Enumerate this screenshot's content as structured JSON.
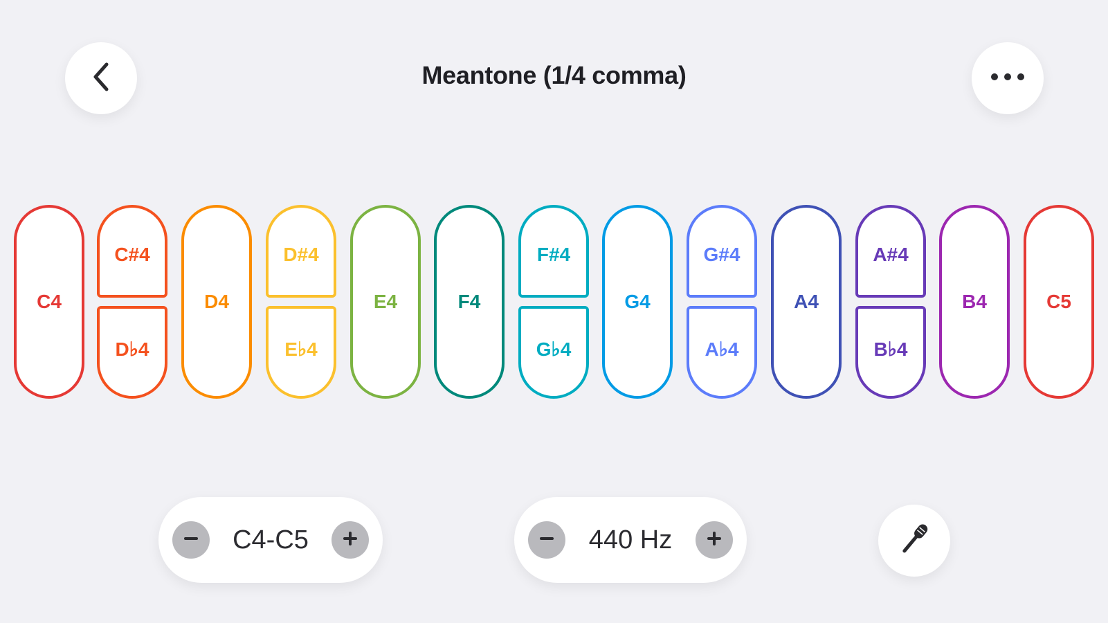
{
  "header": {
    "title": "Meantone (1/4 comma)",
    "back_icon": "chevron-left-icon",
    "more_icon": "ellipsis-icon"
  },
  "keys": [
    {
      "label": "C4",
      "color": "#e53935"
    },
    {
      "upper": "C#4",
      "lower": "D♭4",
      "color": "#f4511e"
    },
    {
      "label": "D4",
      "color": "#fb8c00"
    },
    {
      "upper": "D#4",
      "lower": "E♭4",
      "color": "#fbc02d"
    },
    {
      "label": "E4",
      "color": "#7cb342"
    },
    {
      "label": "F4",
      "color": "#00897b"
    },
    {
      "upper": "F#4",
      "lower": "G♭4",
      "color": "#00acc1"
    },
    {
      "label": "G4",
      "color": "#039be5"
    },
    {
      "upper": "G#4",
      "lower": "A♭4",
      "color": "#5c7cfa"
    },
    {
      "label": "A4",
      "color": "#3f51b5"
    },
    {
      "upper": "A#4",
      "lower": "B♭4",
      "color": "#673ab7"
    },
    {
      "label": "B4",
      "color": "#9c27b0"
    },
    {
      "label": "C5",
      "color": "#e53935"
    }
  ],
  "range": {
    "value": "C4-C5",
    "decrement_icon": "minus-icon",
    "increment_icon": "plus-icon"
  },
  "frequency": {
    "value": "440 Hz",
    "decrement_icon": "minus-icon",
    "increment_icon": "plus-icon"
  },
  "mic": {
    "icon": "microphone-icon"
  }
}
